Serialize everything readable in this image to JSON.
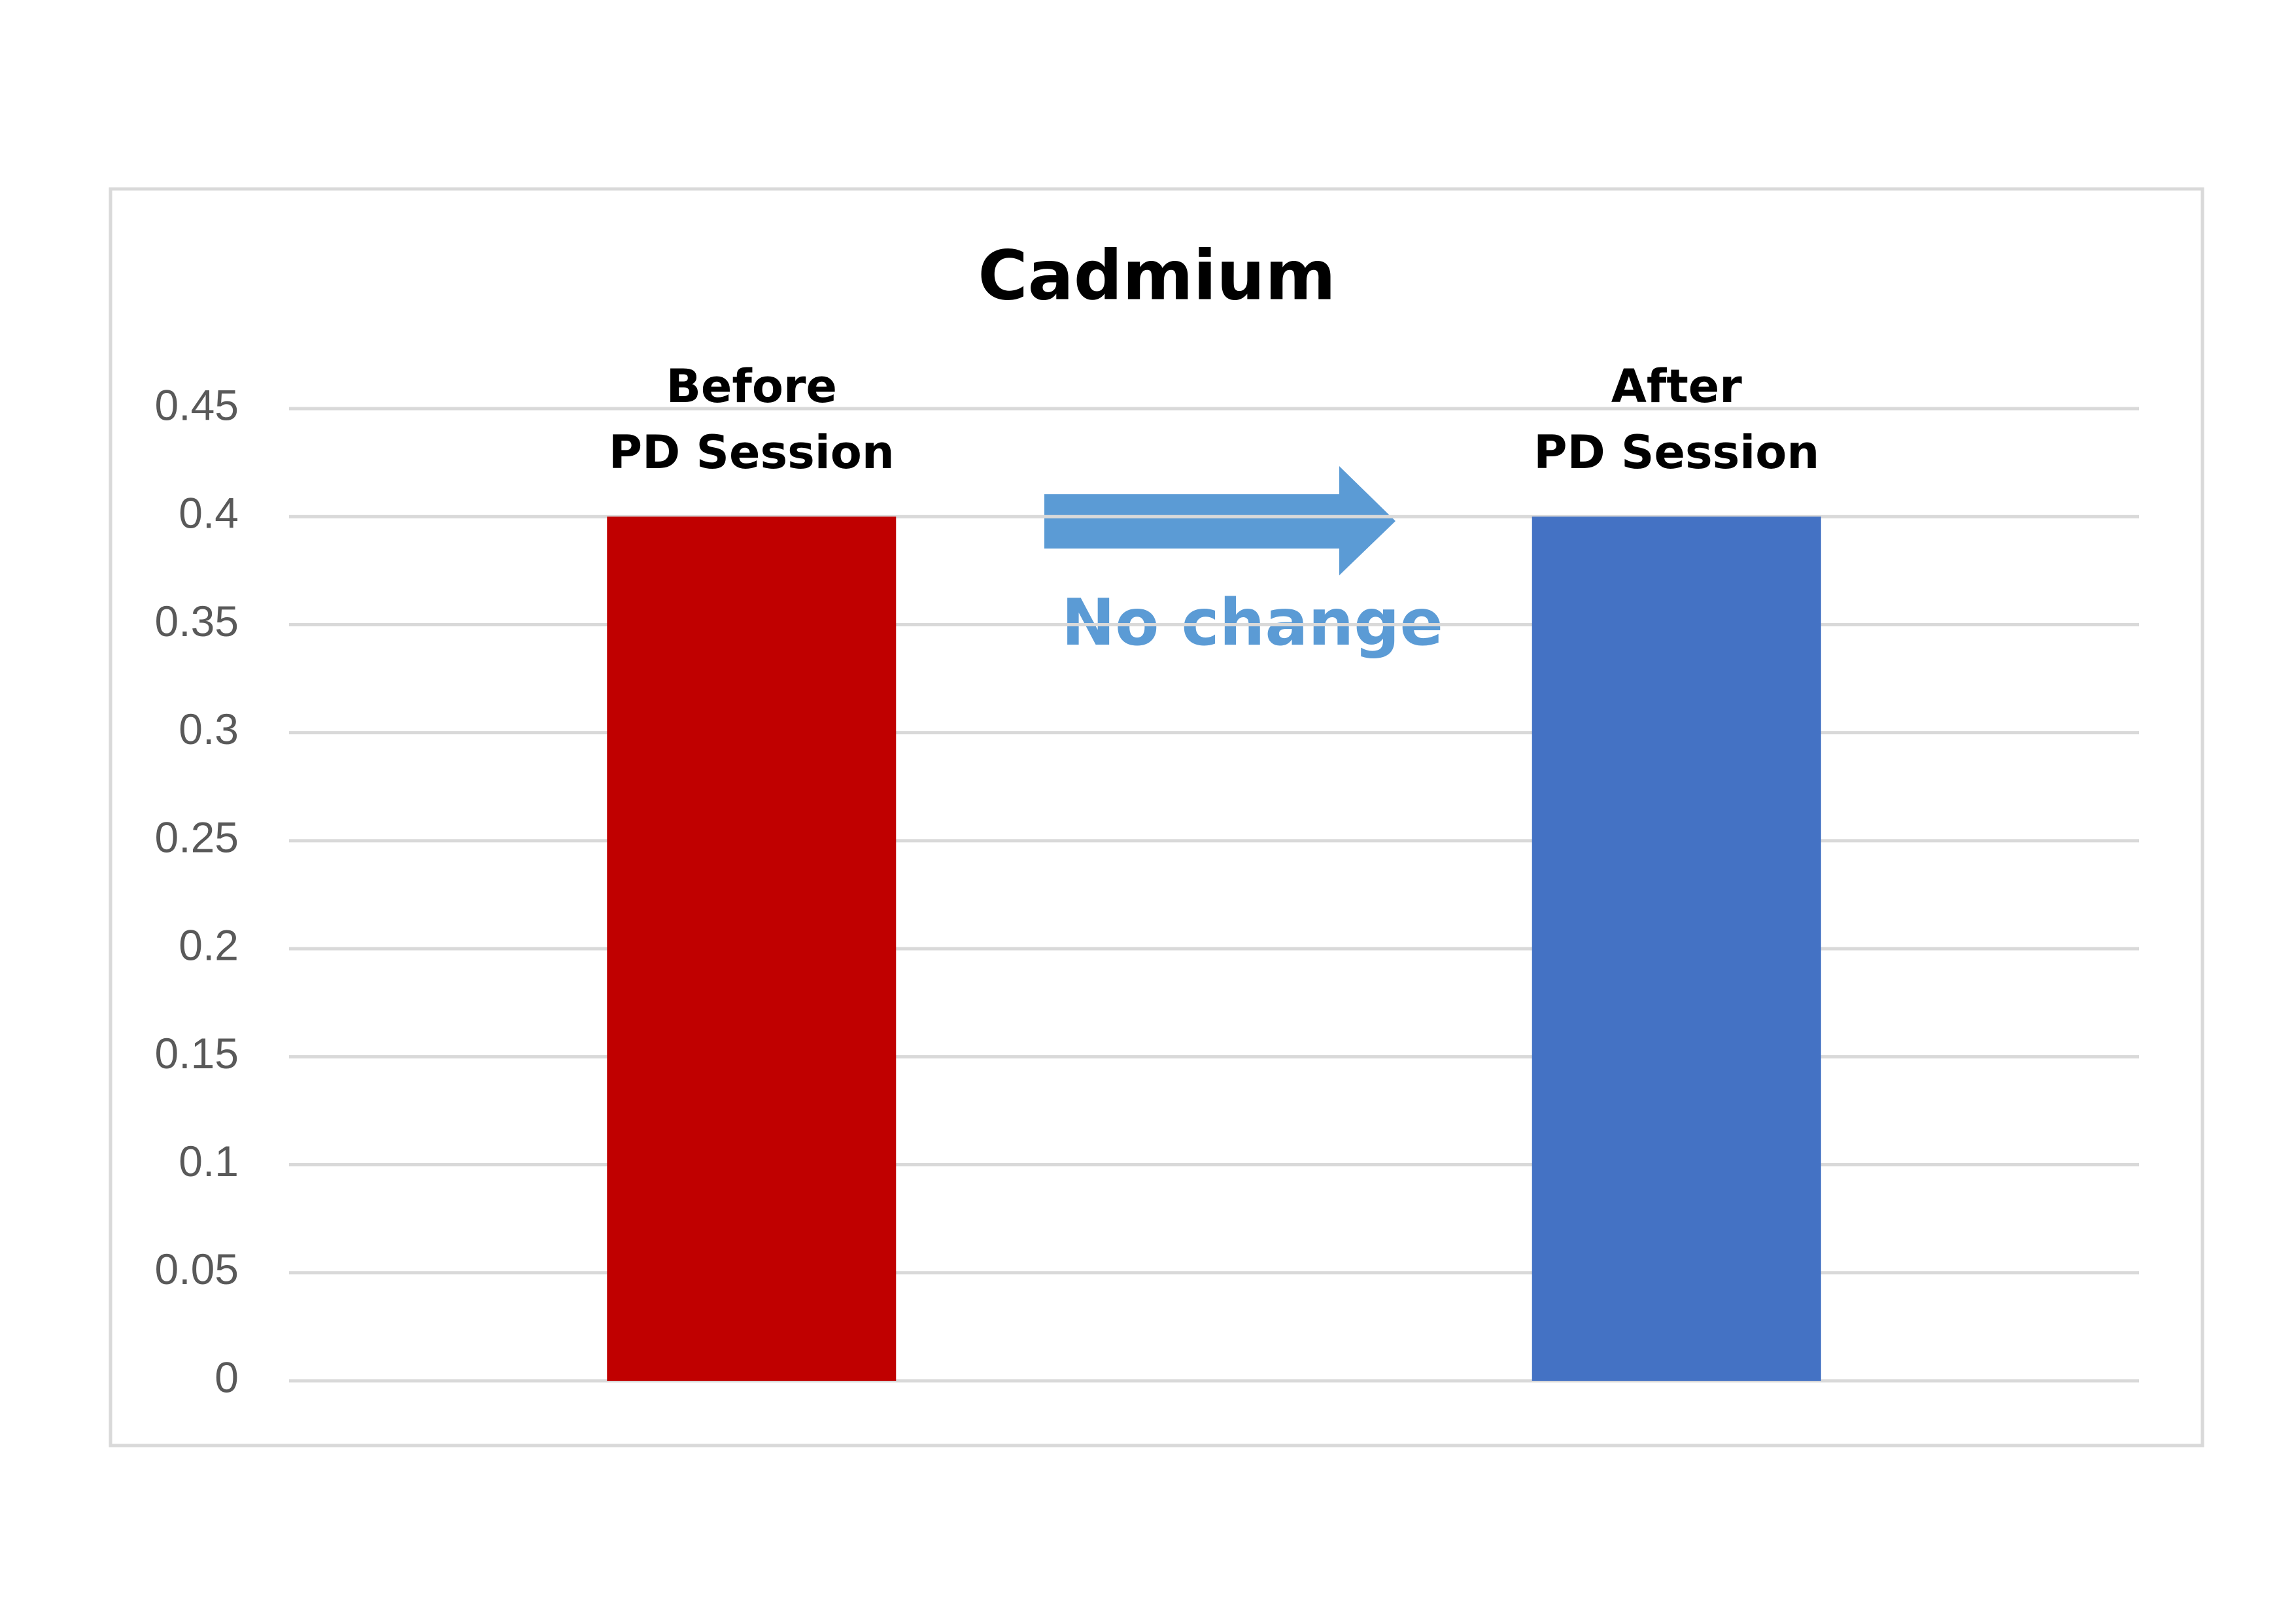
{
  "chart_data": {
    "type": "bar",
    "title": "Cadmium",
    "categories": [
      "Before\nPD Session",
      "After\nPD Session"
    ],
    "values": [
      0.4,
      0.4
    ],
    "colors": [
      "#c00000",
      "#4472c4"
    ],
    "ylim": [
      0,
      0.45
    ],
    "yticks": [
      0,
      0.05,
      0.1,
      0.15,
      0.2,
      0.25,
      0.3,
      0.35,
      0.4,
      0.45
    ],
    "grid": true,
    "annotation": "No change",
    "annotation_color": "#5b9bd5"
  }
}
